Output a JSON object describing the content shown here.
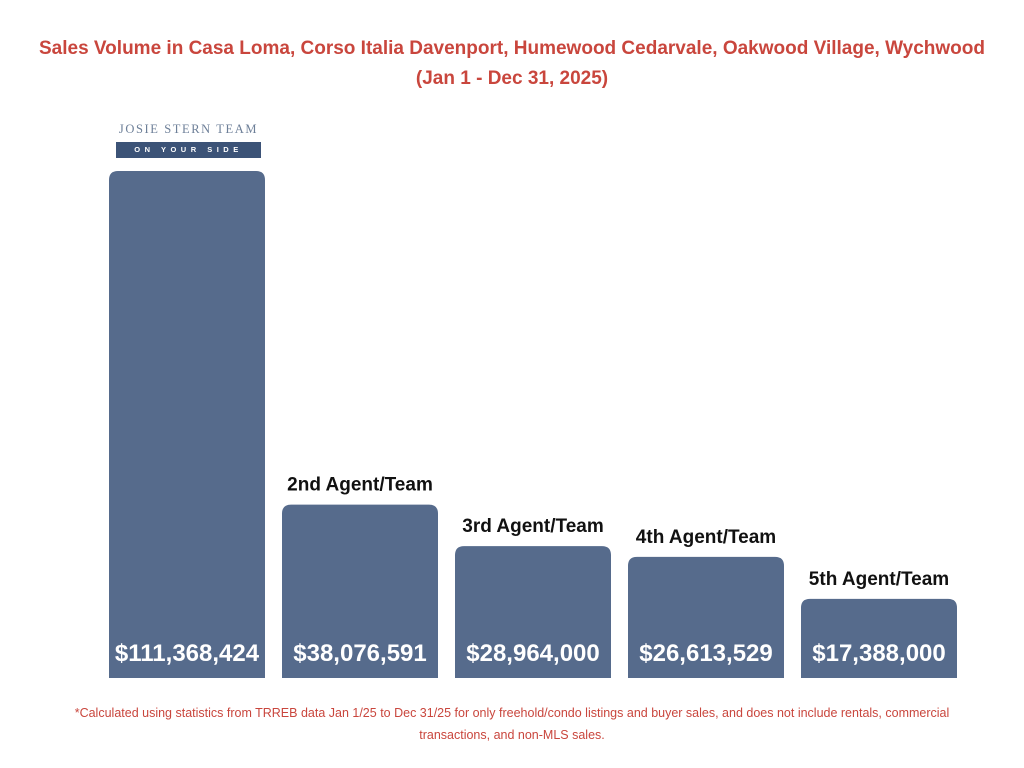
{
  "title": {
    "line1": "Sales Volume in Casa Loma, Corso Italia Davenport, Humewood Cedarvale, Oakwood Village, Wychwood",
    "line2": "(Jan 1 - Dec 31, 2025)"
  },
  "logo": {
    "name": "JOSIE STERN TEAM",
    "tagline": "ON YOUR SIDE"
  },
  "chart_data": {
    "type": "bar",
    "categories": [
      "",
      "2nd Agent/Team",
      "3rd Agent/Team",
      "4th Agent/Team",
      "5th Agent/Team"
    ],
    "values": [
      111368424,
      38076591,
      28964000,
      26613529,
      17388000
    ],
    "value_labels": [
      "$111,368,424",
      "$38,076,591",
      "$28,964,000",
      "$26,613,529",
      "$17,388,000"
    ],
    "bar_color": "#566b8c",
    "ylim": [
      0,
      111368424
    ],
    "grid": false
  },
  "footnote": "*Calculated using statistics from TRREB data Jan 1/25 to Dec 31/25 for only freehold/condo listings and buyer sales, and does not include rentals, commercial transactions, and non-MLS sales."
}
